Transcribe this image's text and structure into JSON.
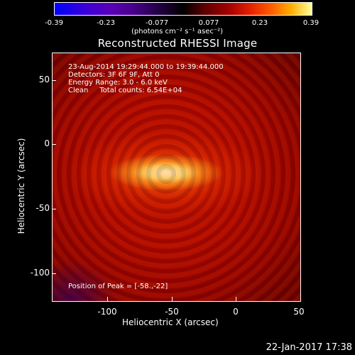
{
  "colorbar": {
    "ticks": [
      "-0.39",
      "-0.23",
      "-0.077",
      "0.077",
      "0.23",
      "0.39"
    ],
    "units": "(photons cm⁻² s⁻¹ asec⁻²)"
  },
  "plot": {
    "title": "Reconstructed RHESSI Image",
    "info": {
      "line1": "23-Aug-2014 19:29:44.000 to 19:39:44.000",
      "line2": "Detectors: 3F 6F 9F, Att 0",
      "line3": "Energy Range: 3.0 - 6.0 keV",
      "line4": "Clean     Total counts: 6.54E+04",
      "peak": "Position of Peak = [-58.,-22]"
    },
    "ytick_labels": [
      "50",
      "0",
      "-50",
      "-100"
    ],
    "xtick_labels": [
      "-100",
      "-50",
      "0",
      "50"
    ],
    "ylabel": "Heliocentric  Y (arcsec)",
    "xlabel": "Heliocentric  X (arcsec)"
  },
  "timestamp": "22-Jan-2017 17:38",
  "colors": {
    "background": "#000000",
    "foreground": "#ffffff"
  }
}
